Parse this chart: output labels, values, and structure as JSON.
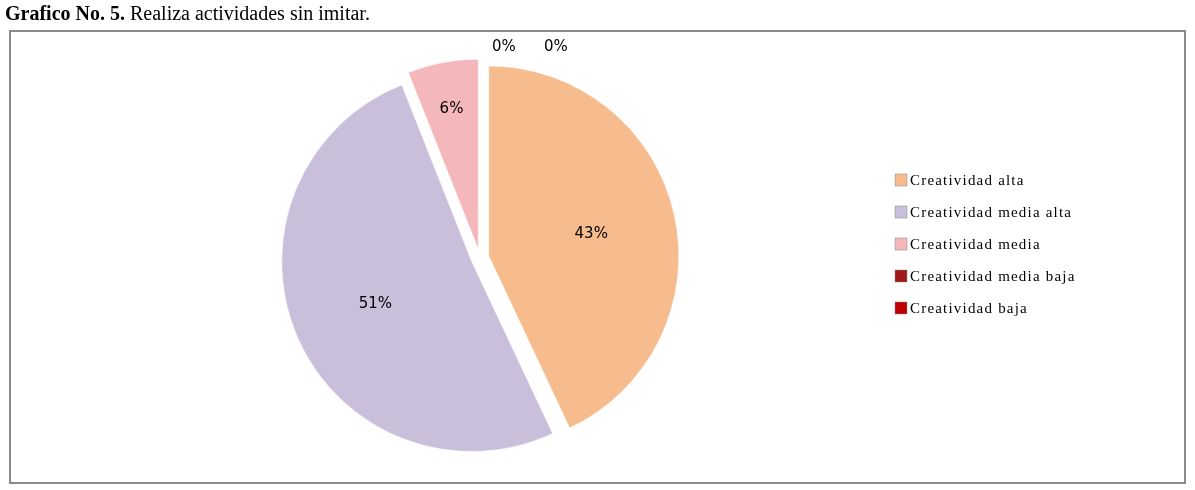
{
  "chart_data": {
    "type": "pie",
    "title": "Grafico No. 5.",
    "subtitle": "Realiza actividades sin imitar.",
    "categories": [
      "Creatividad alta",
      "Creatividad media alta",
      "Creatividad media",
      "Creatividad media baja",
      "Creatividad baja"
    ],
    "values": [
      43,
      51,
      6,
      0,
      0
    ],
    "colors": [
      "#f6bc8e",
      "#c9bfdb",
      "#f5b8ba",
      "#a01818",
      "#c00000"
    ],
    "value_labels": [
      "43%",
      "51%",
      "6%",
      "0%",
      "0%"
    ],
    "legend": "right"
  }
}
